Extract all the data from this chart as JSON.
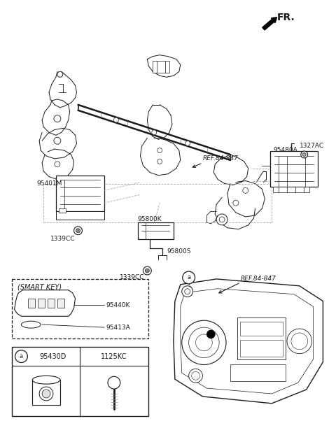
{
  "bg_color": "#ffffff",
  "line_color": "#1a1a1a",
  "fig_width": 4.8,
  "fig_height": 6.12,
  "dpi": 100,
  "labels": {
    "FR": "FR.",
    "ref1": "REF.84-847",
    "ref2": "REF.84-847",
    "p95480A": "95480A",
    "p1327AC": "1327AC",
    "p95401M": "95401M",
    "p1339CC_L": "1339CC",
    "p95800K": "95800K",
    "p95800S": "95800S",
    "p1339CC_M": "1339CC",
    "p95440K": "95440K",
    "p95413A": "95413A",
    "p95430D": "95430D",
    "p1125KC": "1125KC",
    "smart_key": "(SMART KEY)",
    "circle_a": "a"
  }
}
